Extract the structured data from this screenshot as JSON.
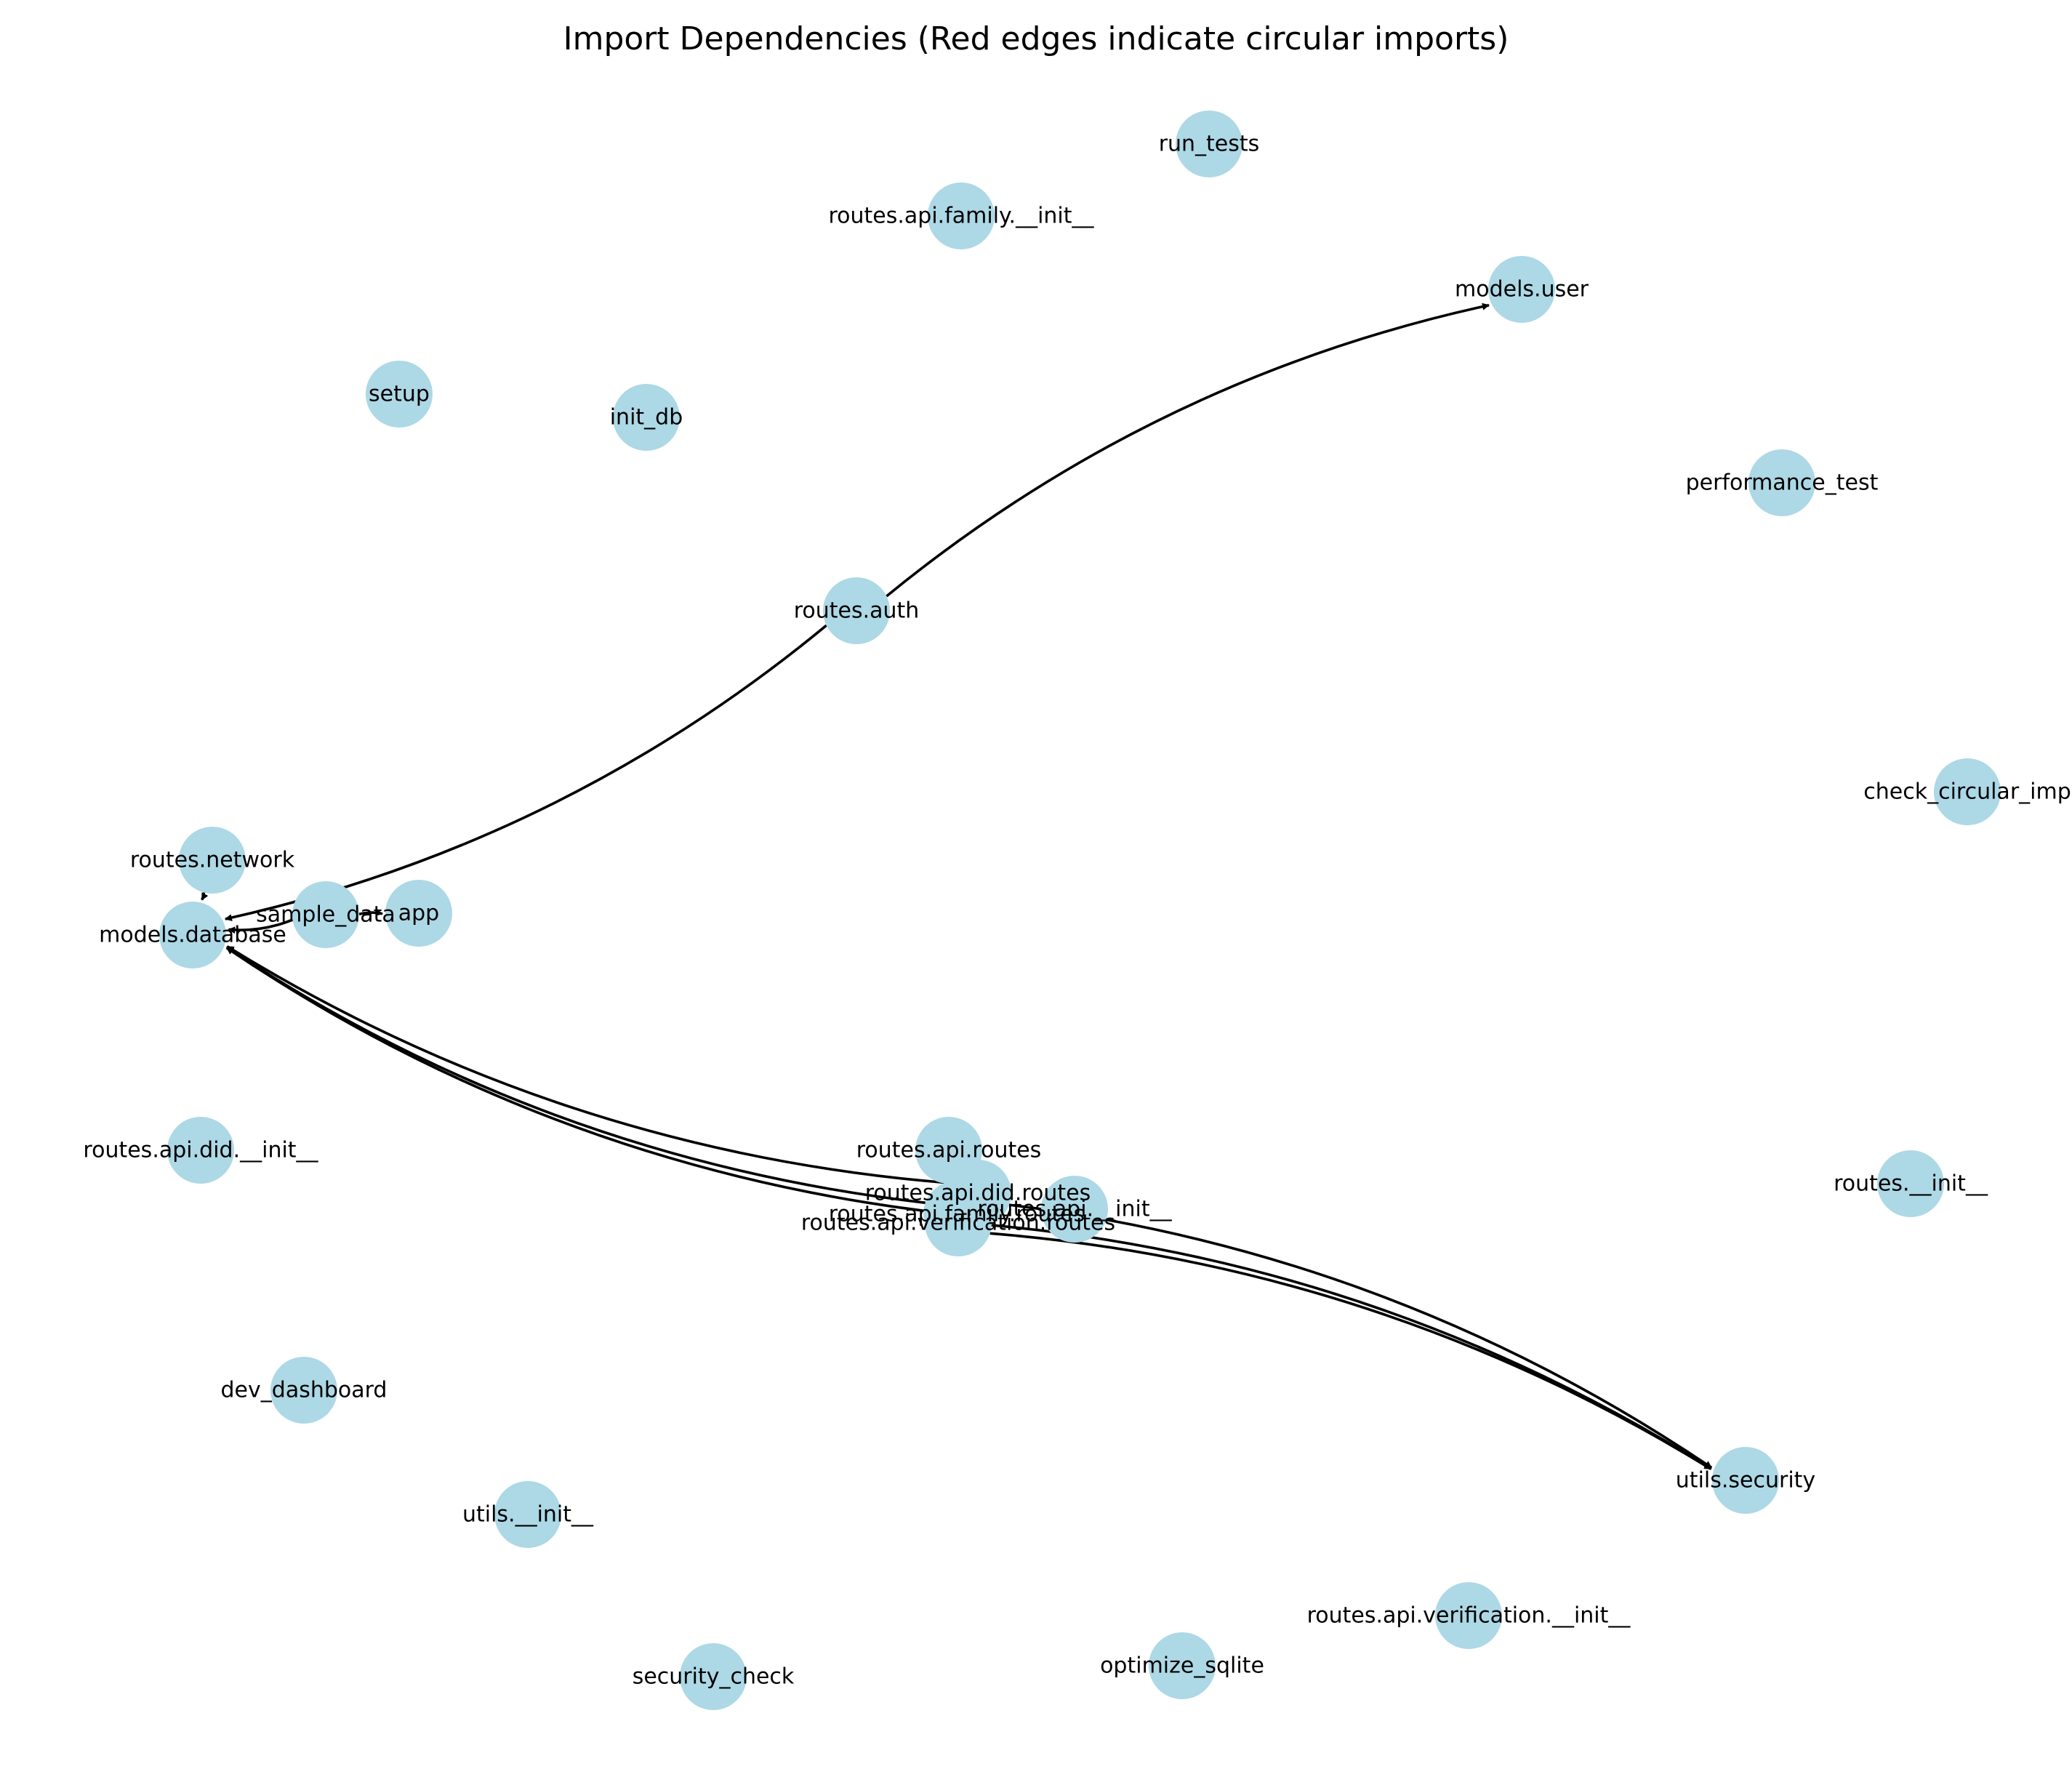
{
  "title": "Import Dependencies (Red edges indicate circular imports)",
  "colors": {
    "node_fill": "#add8e6",
    "edge": "#000000",
    "text": "#000000",
    "background": "#ffffff"
  },
  "nodes": [
    {
      "id": "run_tests",
      "label": "run_tests"
    },
    {
      "id": "routes.api.family.__init__",
      "label": "routes.api.family.__init__"
    },
    {
      "id": "models.user",
      "label": "models.user"
    },
    {
      "id": "setup",
      "label": "setup"
    },
    {
      "id": "init_db",
      "label": "init_db"
    },
    {
      "id": "performance_test",
      "label": "performance_test"
    },
    {
      "id": "routes.auth",
      "label": "routes.auth"
    },
    {
      "id": "check_circular_imp",
      "label": "check_circular_imp"
    },
    {
      "id": "routes.network",
      "label": "routes.network"
    },
    {
      "id": "sample_data",
      "label": "sample_data"
    },
    {
      "id": "app",
      "label": "app"
    },
    {
      "id": "models.database",
      "label": "models.database"
    },
    {
      "id": "routes.api.did.__init__",
      "label": "routes.api.did.__init__"
    },
    {
      "id": "routes.api.routes",
      "label": "routes.api.routes"
    },
    {
      "id": "routes.api.did.routes",
      "label": "routes.api.did.routes"
    },
    {
      "id": "routes.api.__init__",
      "label": "routes.api.__init__"
    },
    {
      "id": "routes.api.family.routes",
      "label": "routes.api.family.routes"
    },
    {
      "id": "routes.api.verification.routes",
      "label": "routes.api.verification.routes"
    },
    {
      "id": "routes.__init__",
      "label": "routes.__init__"
    },
    {
      "id": "dev_dashboard",
      "label": "dev_dashboard"
    },
    {
      "id": "utils.security",
      "label": "utils.security"
    },
    {
      "id": "utils.__init__",
      "label": "utils.__init__"
    },
    {
      "id": "routes.api.verification.__init__",
      "label": "routes.api.verification.__init__"
    },
    {
      "id": "optimize_sqlite",
      "label": "optimize_sqlite"
    },
    {
      "id": "security_check",
      "label": "security_check"
    }
  ],
  "edges": [
    {
      "source": "routes.auth",
      "target": "models.user"
    },
    {
      "source": "routes.auth",
      "target": "models.database"
    },
    {
      "source": "routes.network",
      "target": "models.database"
    },
    {
      "source": "sample_data",
      "target": "models.database"
    },
    {
      "source": "sample_data",
      "target": "app"
    },
    {
      "source": "routes.api.did.routes",
      "target": "models.database"
    },
    {
      "source": "routes.api.family.routes",
      "target": "models.database"
    },
    {
      "source": "routes.api.verification.routes",
      "target": "models.database"
    },
    {
      "source": "routes.api.did.routes",
      "target": "utils.security"
    },
    {
      "source": "routes.api.family.routes",
      "target": "utils.security"
    },
    {
      "source": "routes.api.verification.routes",
      "target": "utils.security"
    }
  ]
}
